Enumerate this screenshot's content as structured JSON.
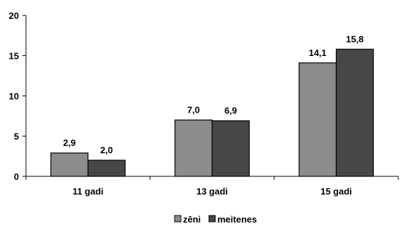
{
  "chart_data": {
    "type": "bar",
    "categories": [
      "11 gadi",
      "13 gadi",
      "15 gadi"
    ],
    "series": [
      {
        "name": "zēni",
        "values": [
          2.9,
          7.0,
          14.1
        ],
        "labels": [
          "2,9",
          "7,0",
          "14,1"
        ],
        "color": "#8c8c8c"
      },
      {
        "name": "meitenes",
        "values": [
          2.0,
          6.9,
          15.8
        ],
        "labels": [
          "2,0",
          "6,9",
          "15,8"
        ],
        "color": "#474747"
      }
    ],
    "ylim": [
      0,
      20
    ],
    "yticks": [
      0,
      5,
      10,
      15,
      20
    ],
    "ytick_labels": [
      "0",
      "5",
      "10",
      "15",
      "20"
    ],
    "grid": false,
    "legend_position": "bottom-center",
    "title": "",
    "xlabel": "",
    "ylabel": ""
  }
}
